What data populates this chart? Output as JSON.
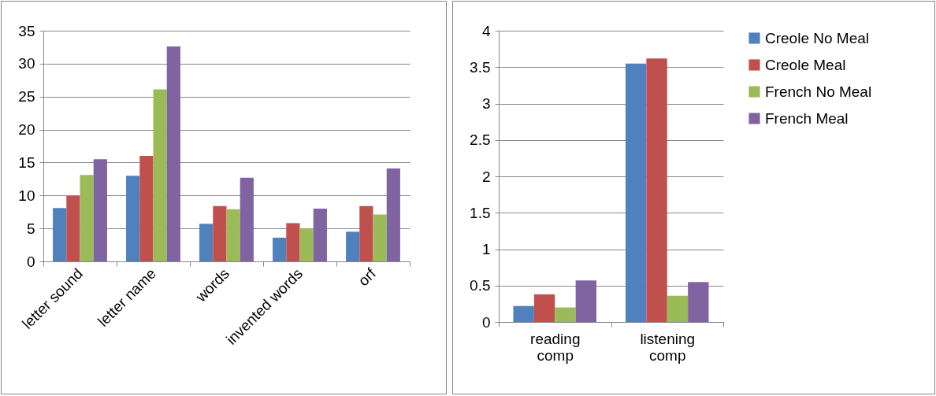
{
  "chart_data": [
    {
      "type": "bar",
      "categories": [
        "letter sound",
        "letter name",
        "words",
        "invented words",
        "orf"
      ],
      "series": [
        {
          "color": "#4f81bd",
          "values": [
            8.1,
            13.0,
            5.7,
            3.6,
            4.5
          ]
        },
        {
          "color": "#c0504d",
          "values": [
            9.9,
            16.0,
            8.4,
            5.8,
            8.4
          ]
        },
        {
          "color": "#9bbb59",
          "values": [
            13.1,
            26.1,
            7.9,
            5.0,
            7.1
          ]
        },
        {
          "color": "#8064a2",
          "values": [
            15.5,
            32.6,
            12.7,
            8.0,
            14.1
          ]
        }
      ],
      "ylim": [
        0,
        35
      ],
      "yticks": [
        0,
        5,
        10,
        15,
        20,
        25,
        30,
        35
      ],
      "grid": "y",
      "legend": false
    },
    {
      "type": "bar",
      "categories": [
        "reading comp",
        "listening comp"
      ],
      "series": [
        {
          "name": "Creole No Meal",
          "color": "#4f81bd",
          "values": [
            0.22,
            3.55
          ]
        },
        {
          "name": "Creole Meal",
          "color": "#c0504d",
          "values": [
            0.38,
            3.62
          ]
        },
        {
          "name": "French No Meal",
          "color": "#9bbb59",
          "values": [
            0.2,
            0.36
          ]
        },
        {
          "name": "French Meal",
          "color": "#8064a2",
          "values": [
            0.57,
            0.55
          ]
        }
      ],
      "ylim": [
        0,
        4
      ],
      "yticks": [
        0,
        0.5,
        1,
        1.5,
        2,
        2.5,
        3,
        3.5,
        4
      ],
      "grid": "y",
      "legend": "right"
    }
  ]
}
